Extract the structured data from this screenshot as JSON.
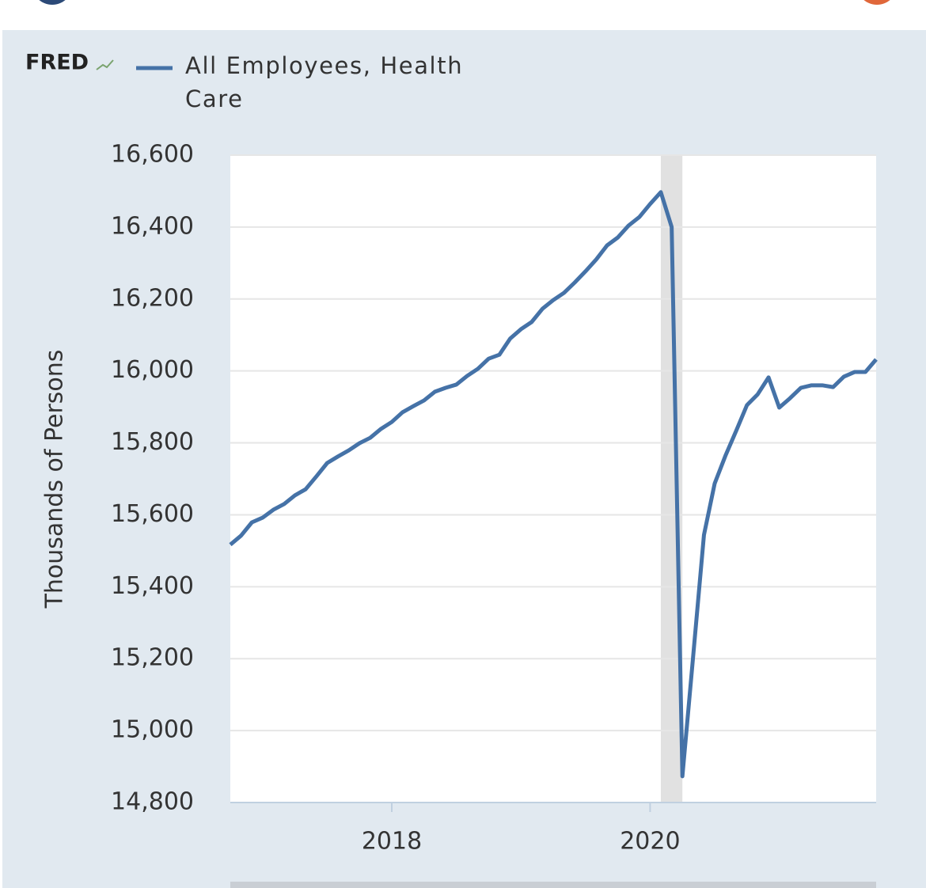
{
  "chart_data": {
    "type": "line",
    "brand": "FRED",
    "ylabel": "Thousands of Persons",
    "series": [
      {
        "name": "All Employees, Health Care",
        "color": "#4572a7",
        "values": [
          15517,
          15542,
          15579,
          15592,
          15614,
          15630,
          15654,
          15671,
          15707,
          15744,
          15762,
          15779,
          15799,
          15814,
          15839,
          15858,
          15885,
          15902,
          15918,
          15942,
          15953,
          15962,
          15986,
          16006,
          16034,
          16045,
          16090,
          16116,
          16136,
          16173,
          16197,
          16217,
          16246,
          16277,
          16310,
          16349,
          16371,
          16404,
          16428,
          16464,
          16497,
          16400,
          14873,
          15205,
          15544,
          15687,
          15764,
          15834,
          15905,
          15935,
          15982,
          15898,
          15924,
          15953,
          15960,
          15960,
          15955,
          15984,
          15997,
          15997,
          16032
        ]
      }
    ],
    "x": [
      2016.75,
      2016.833,
      2016.917,
      2017,
      2017.083,
      2017.167,
      2017.25,
      2017.333,
      2017.417,
      2017.5,
      2017.583,
      2017.667,
      2017.75,
      2017.833,
      2017.917,
      2018,
      2018.083,
      2018.167,
      2018.25,
      2018.333,
      2018.417,
      2018.5,
      2018.583,
      2018.667,
      2018.75,
      2018.833,
      2018.917,
      2019,
      2019.083,
      2019.167,
      2019.25,
      2019.333,
      2019.417,
      2019.5,
      2019.583,
      2019.667,
      2019.75,
      2019.833,
      2019.917,
      2020,
      2020.083,
      2020.167,
      2020.25,
      2020.333,
      2020.417,
      2020.5,
      2020.583,
      2020.667,
      2020.75,
      2020.833,
      2020.917,
      2021,
      2021.083,
      2021.167,
      2021.25,
      2021.333,
      2021.417,
      2021.5,
      2021.583,
      2021.667,
      2021.75
    ],
    "xlim": [
      2016.75,
      2021.75
    ],
    "xticks": [
      2018,
      2020
    ],
    "ylim": [
      14800,
      16600
    ],
    "yticks": [
      {
        "value": 14800,
        "label": "14,800"
      },
      {
        "value": 15000,
        "label": "15,000"
      },
      {
        "value": 15200,
        "label": "15,200"
      },
      {
        "value": 15400,
        "label": "15,400"
      },
      {
        "value": 15600,
        "label": "15,600"
      },
      {
        "value": 15800,
        "label": "15,800"
      },
      {
        "value": 16000,
        "label": "16,000"
      },
      {
        "value": 16200,
        "label": "16,200"
      },
      {
        "value": 16400,
        "label": "16,400"
      },
      {
        "value": 16600,
        "label": "16,600"
      }
    ],
    "recessions": [
      [
        2020.083,
        2020.25
      ]
    ],
    "grid": true
  }
}
